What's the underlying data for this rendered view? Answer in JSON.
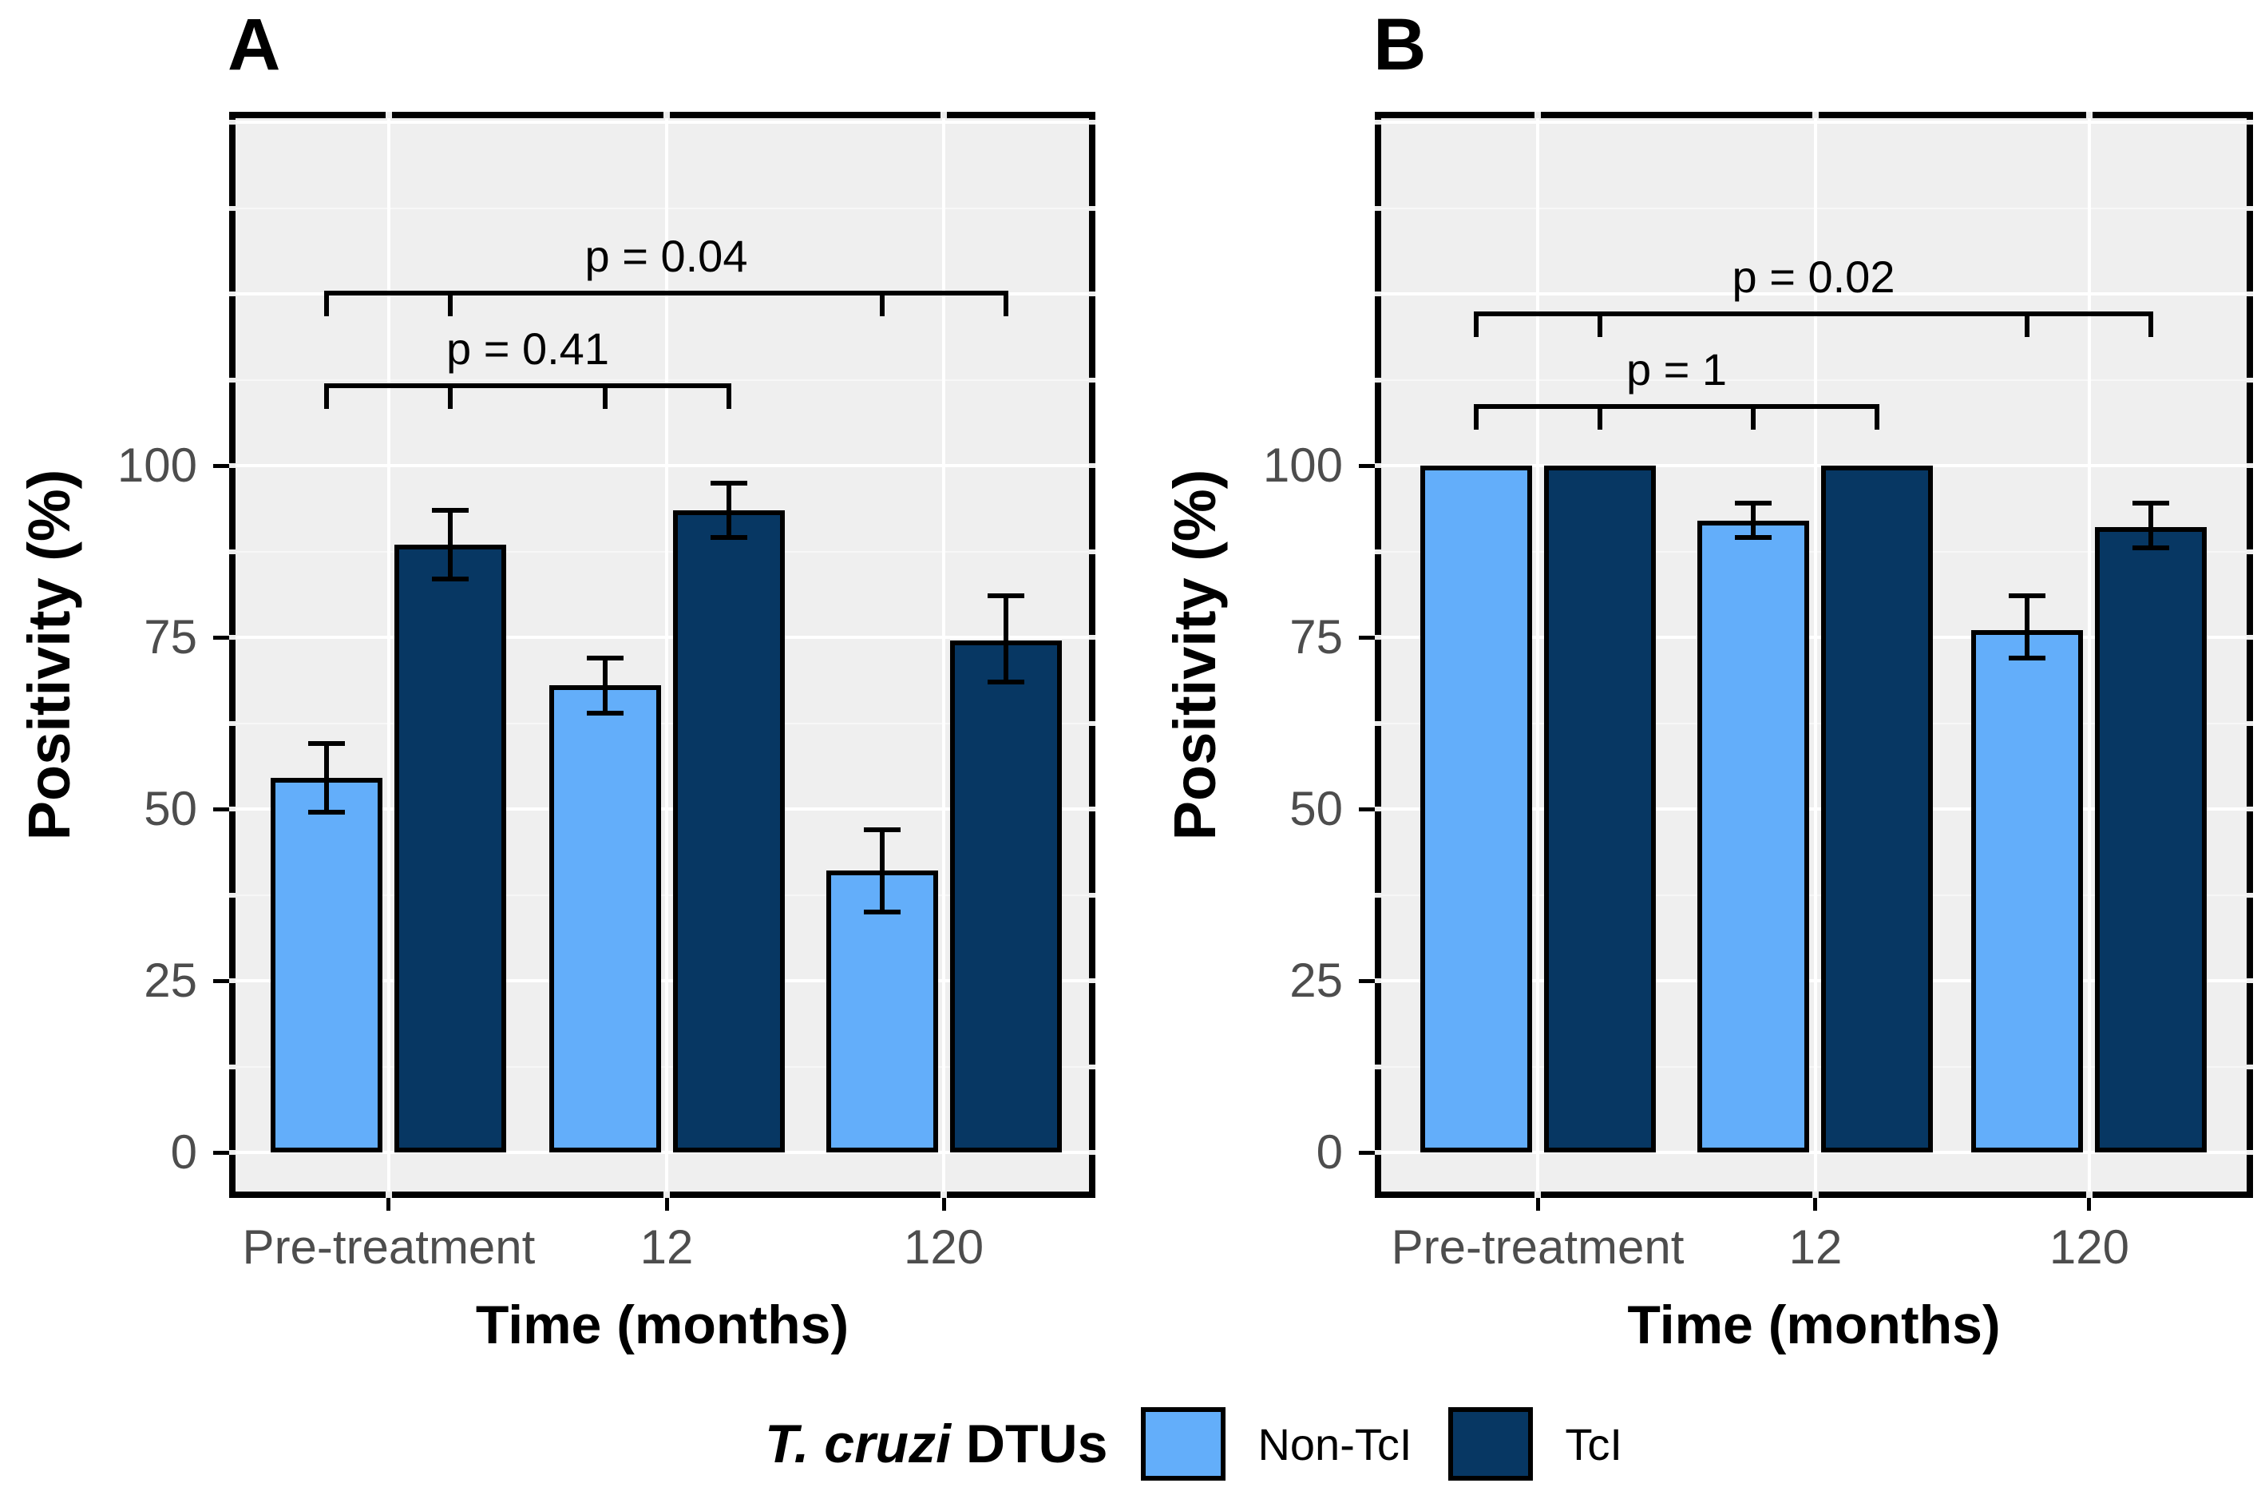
{
  "figure": {
    "background": "#ffffff",
    "panel_bg": "#efefef",
    "grid_major_color": "#ffffff",
    "grid_minor_color": "#f7f7f7",
    "axis_text_color": "#4d4d4d",
    "border_color": "#000000"
  },
  "legend": {
    "title_italic": "T. cruzi",
    "title_rest": " DTUs",
    "items": [
      {
        "label": "Non-TcI",
        "color": "#63AEFA"
      },
      {
        "label": "TcI",
        "color": "#073763"
      }
    ]
  },
  "chart_data": [
    {
      "type": "bar",
      "panel_tag": "A",
      "xlabel": "Time (months)",
      "ylabel": "Positivity (%)",
      "categories": [
        "Pre-treatment",
        "12",
        "120"
      ],
      "ytick_values": [
        0,
        25,
        50,
        75,
        100
      ],
      "ytick_labels": [
        "0",
        "25",
        "50",
        "75",
        "100"
      ],
      "ylim": [
        -7.5,
        151.5
      ],
      "grid": "on",
      "series": [
        {
          "name": "Non-TcI",
          "color": "#63AEFA",
          "values": [
            54.5,
            68,
            41
          ],
          "errors_low": [
            49.5,
            64,
            35
          ],
          "errors_high": [
            59.5,
            72,
            47
          ]
        },
        {
          "name": "TcI",
          "color": "#073763",
          "values": [
            88.5,
            93.5,
            74.5
          ],
          "errors_low": [
            83.5,
            89.5,
            68.5
          ],
          "errors_high": [
            93.5,
            97.5,
            81
          ]
        }
      ],
      "significance": [
        {
          "label": "p = 0.41",
          "y": 112,
          "from_group": 0,
          "to_group": 1
        },
        {
          "label": "p = 0.04",
          "y": 125.5,
          "from_group": 0,
          "to_group": 2
        }
      ]
    },
    {
      "type": "bar",
      "panel_tag": "B",
      "xlabel": "Time (months)",
      "ylabel": "Positivity (%)",
      "categories": [
        "Pre-treatment",
        "12",
        "120"
      ],
      "ytick_values": [
        0,
        25,
        50,
        75,
        100
      ],
      "ytick_labels": [
        "0",
        "25",
        "50",
        "75",
        "100"
      ],
      "ylim": [
        -7.5,
        151.5
      ],
      "grid": "on",
      "series": [
        {
          "name": "Non-TcI",
          "color": "#63AEFA",
          "values": [
            100,
            92,
            76
          ],
          "errors_low": [
            null,
            89.5,
            72
          ],
          "errors_high": [
            null,
            94.5,
            81
          ]
        },
        {
          "name": "TcI",
          "color": "#073763",
          "values": [
            100,
            100,
            91
          ],
          "errors_low": [
            null,
            null,
            88
          ],
          "errors_high": [
            null,
            null,
            94.5
          ]
        }
      ],
      "significance": [
        {
          "label": "p = 1",
          "y": 109,
          "from_group": 0,
          "to_group": 1
        },
        {
          "label": "p = 0.02",
          "y": 122.5,
          "from_group": 0,
          "to_group": 2
        }
      ]
    }
  ]
}
